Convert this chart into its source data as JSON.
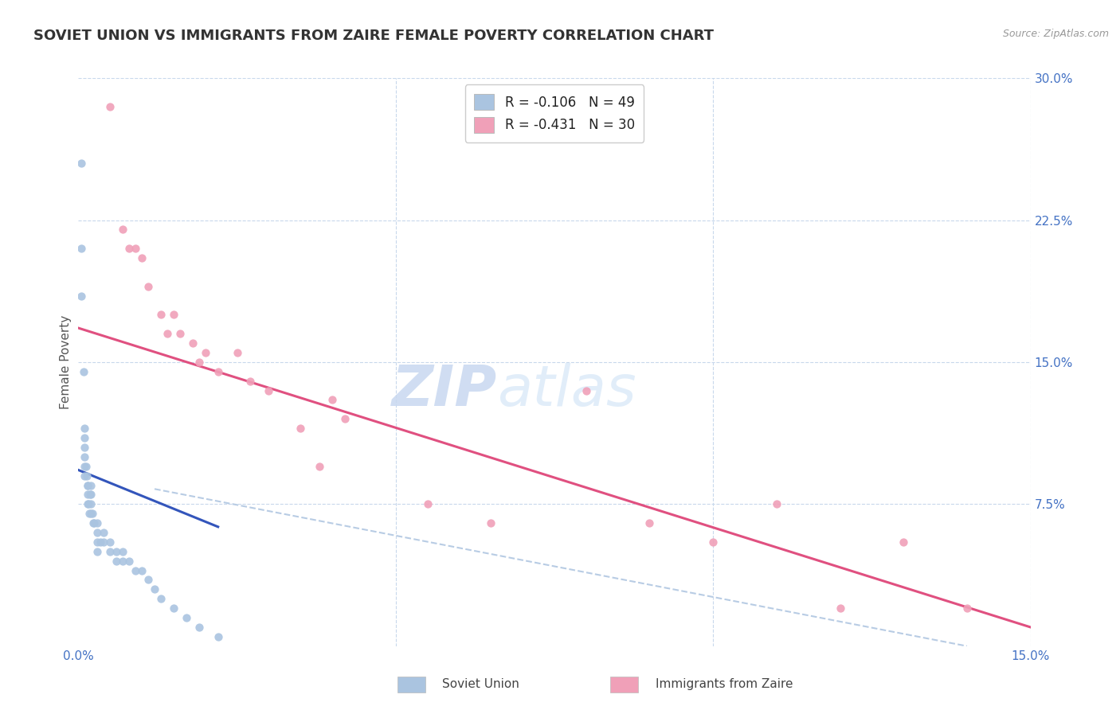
{
  "title": "SOVIET UNION VS IMMIGRANTS FROM ZAIRE FEMALE POVERTY CORRELATION CHART",
  "source": "Source: ZipAtlas.com",
  "ylabel": "Female Poverty",
  "x_min": 0.0,
  "x_max": 0.15,
  "y_min": 0.0,
  "y_max": 0.3,
  "legend1_label": "R = -0.106   N = 49",
  "legend2_label": "R = -0.431   N = 30",
  "bottom_legend1": "Soviet Union",
  "bottom_legend2": "Immigrants from Zaire",
  "color_blue": "#aac4e0",
  "color_pink": "#f0a0b8",
  "color_line_blue": "#3355bb",
  "color_line_pink": "#e05080",
  "color_line_dash": "#b8cce4",
  "color_text_blue": "#4472c4",
  "color_axis_text": "#4472c4",
  "watermark_zip": "ZIP",
  "watermark_atlas": "atlas",
  "soviet_x": [
    0.0005,
    0.0005,
    0.0005,
    0.0008,
    0.001,
    0.001,
    0.001,
    0.001,
    0.001,
    0.001,
    0.0012,
    0.0013,
    0.0014,
    0.0015,
    0.0015,
    0.0015,
    0.0016,
    0.0017,
    0.0018,
    0.002,
    0.002,
    0.002,
    0.002,
    0.0022,
    0.0023,
    0.0025,
    0.003,
    0.003,
    0.003,
    0.003,
    0.0035,
    0.004,
    0.004,
    0.005,
    0.005,
    0.006,
    0.006,
    0.007,
    0.007,
    0.008,
    0.009,
    0.01,
    0.011,
    0.012,
    0.013,
    0.015,
    0.017,
    0.019,
    0.022
  ],
  "soviet_y": [
    0.255,
    0.21,
    0.185,
    0.145,
    0.115,
    0.11,
    0.105,
    0.1,
    0.095,
    0.09,
    0.095,
    0.09,
    0.085,
    0.085,
    0.08,
    0.075,
    0.075,
    0.07,
    0.08,
    0.085,
    0.08,
    0.075,
    0.07,
    0.07,
    0.065,
    0.065,
    0.065,
    0.06,
    0.055,
    0.05,
    0.055,
    0.06,
    0.055,
    0.055,
    0.05,
    0.05,
    0.045,
    0.05,
    0.045,
    0.045,
    0.04,
    0.04,
    0.035,
    0.03,
    0.025,
    0.02,
    0.015,
    0.01,
    0.005
  ],
  "zaire_x": [
    0.005,
    0.007,
    0.008,
    0.009,
    0.01,
    0.011,
    0.013,
    0.014,
    0.015,
    0.016,
    0.018,
    0.019,
    0.02,
    0.022,
    0.025,
    0.027,
    0.03,
    0.035,
    0.038,
    0.04,
    0.042,
    0.055,
    0.065,
    0.09,
    0.1,
    0.11,
    0.12,
    0.13,
    0.14,
    0.08
  ],
  "zaire_y": [
    0.285,
    0.22,
    0.21,
    0.21,
    0.205,
    0.19,
    0.175,
    0.165,
    0.175,
    0.165,
    0.16,
    0.15,
    0.155,
    0.145,
    0.155,
    0.14,
    0.135,
    0.115,
    0.095,
    0.13,
    0.12,
    0.075,
    0.065,
    0.065,
    0.055,
    0.075,
    0.02,
    0.055,
    0.02,
    0.135
  ],
  "soviet_trendline_x": [
    0.0,
    0.022
  ],
  "soviet_trendline_y": [
    0.093,
    0.063
  ],
  "zaire_trendline_x": [
    0.0,
    0.15
  ],
  "zaire_trendline_y": [
    0.168,
    0.01
  ],
  "dash_trendline_x": [
    0.012,
    0.14
  ],
  "dash_trendline_y": [
    0.083,
    0.0
  ]
}
